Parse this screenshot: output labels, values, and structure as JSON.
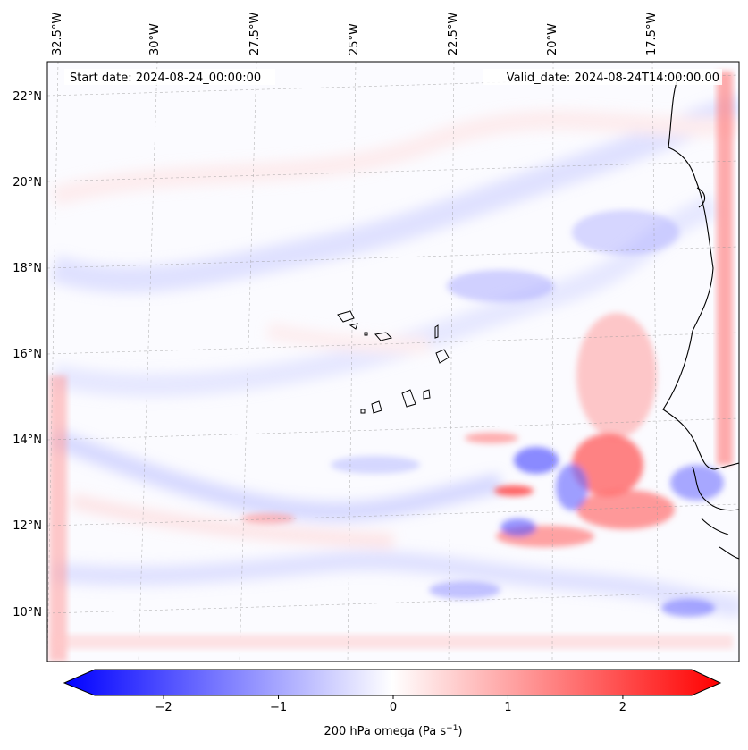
{
  "map": {
    "start_date": "Start date: 2024-08-24_00:00:00",
    "valid_date": "Valid_date: 2024-08-24T14:00:00.00",
    "lon_labels": [
      "32.5°W",
      "30°W",
      "27.5°W",
      "25°W",
      "22.5°W",
      "20°W",
      "17.5°W"
    ],
    "lat_labels": [
      "22°N",
      "20°N",
      "18°N",
      "16°N",
      "14°N",
      "12°N",
      "10°N"
    ],
    "projection": "lambert-conformal",
    "gridlines": true,
    "coastlines": true
  },
  "colorbar": {
    "label_main": "200 hPa omega (Pa s",
    "label_sup": "−1",
    "label_end": ")",
    "ticks": [
      "−2",
      "−1",
      "0",
      "1",
      "2"
    ],
    "tick_values": [
      -2,
      -1,
      0,
      1,
      2
    ],
    "range": [
      -2.6,
      2.6
    ],
    "extend": "both",
    "colormap": "bwr",
    "color_low": "#0000ff",
    "color_mid": "#ffffff",
    "color_high": "#ff0000"
  },
  "chart_data": {
    "type": "heatmap",
    "variable": "200 hPa omega",
    "units": "Pa s^-1",
    "vmin": -2.6,
    "vmax": 2.6
  }
}
